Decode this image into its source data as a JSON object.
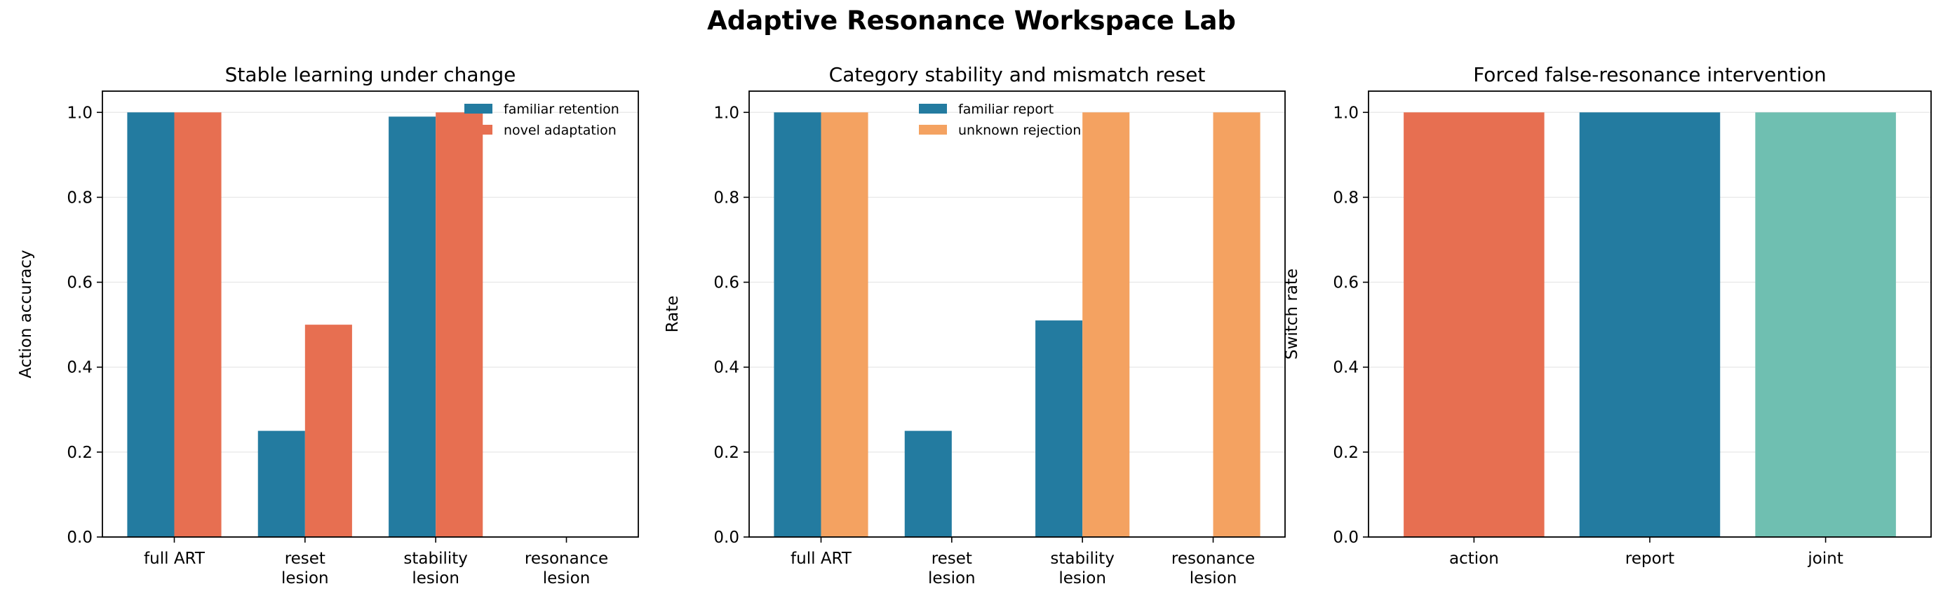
{
  "figure": {
    "title": "Adaptive Resonance Workspace Lab"
  },
  "colors": {
    "blue": "#237ba0",
    "coral": "#e76f51",
    "orange": "#f4a261",
    "teal": "#6fbfb1",
    "grid": "#e9e9e9"
  },
  "chart_data": [
    {
      "type": "bar",
      "title": "Stable learning under change",
      "ylabel": "Action accuracy",
      "xlabel": "",
      "ylim": [
        0,
        1.05
      ],
      "yticks": [
        "0.0",
        "0.2",
        "0.4",
        "0.6",
        "0.8",
        "1.0"
      ],
      "categories": [
        [
          "full ART"
        ],
        [
          "reset",
          "lesion"
        ],
        [
          "stability",
          "lesion"
        ],
        [
          "resonance",
          "lesion"
        ]
      ],
      "series": [
        {
          "name": "familiar retention",
          "color": "#237ba0",
          "values": [
            1.0,
            0.25,
            0.99,
            0.0
          ]
        },
        {
          "name": "novel adaptation",
          "color": "#e76f51",
          "values": [
            1.0,
            0.5,
            1.0,
            0.0
          ]
        }
      ],
      "legend": "top-right",
      "grid": "y"
    },
    {
      "type": "bar",
      "title": "Category stability and mismatch reset",
      "ylabel": "Rate",
      "xlabel": "",
      "ylim": [
        0,
        1.05
      ],
      "yticks": [
        "0.0",
        "0.2",
        "0.4",
        "0.6",
        "0.8",
        "1.0"
      ],
      "categories": [
        [
          "full ART"
        ],
        [
          "reset",
          "lesion"
        ],
        [
          "stability",
          "lesion"
        ],
        [
          "resonance",
          "lesion"
        ]
      ],
      "series": [
        {
          "name": "familiar report",
          "color": "#237ba0",
          "values": [
            1.0,
            0.25,
            0.51,
            0.0
          ]
        },
        {
          "name": "unknown rejection",
          "color": "#f4a261",
          "values": [
            1.0,
            0.0,
            1.0,
            1.0
          ]
        }
      ],
      "legend": "upper-center",
      "grid": "y"
    },
    {
      "type": "bar",
      "title": "Forced false-resonance intervention",
      "ylabel": "Switch rate",
      "xlabel": "",
      "ylim": [
        0,
        1.05
      ],
      "yticks": [
        "0.0",
        "0.2",
        "0.4",
        "0.6",
        "0.8",
        "1.0"
      ],
      "categories": [
        [
          "action"
        ],
        [
          "report"
        ],
        [
          "joint"
        ]
      ],
      "values": [
        1.0,
        1.0,
        1.0
      ],
      "bar_colors": [
        "#e76f51",
        "#237ba0",
        "#6fbfb1"
      ],
      "grid": "y"
    }
  ]
}
